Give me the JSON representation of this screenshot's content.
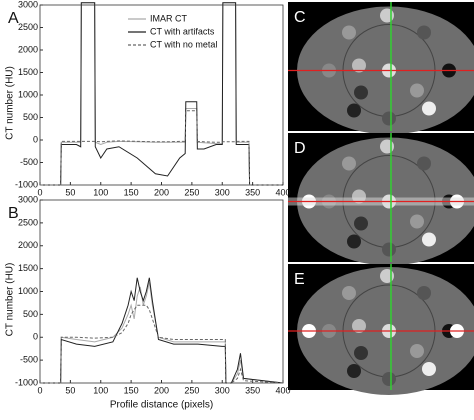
{
  "chart_data": [
    {
      "type": "line",
      "panel_label": "A",
      "y_label": "CT number (HU)",
      "xlim": [
        0,
        400
      ],
      "xticks": [
        0,
        50,
        100,
        150,
        200,
        250,
        300,
        350,
        400
      ],
      "ylim": [
        -1000,
        3000
      ],
      "yticks": [
        -1000,
        -500,
        0,
        500,
        1000,
        1500,
        2000,
        2500,
        3000
      ],
      "legend": "top-center",
      "x": [
        0,
        34,
        35,
        60,
        67,
        68,
        90,
        91,
        100,
        110,
        130,
        160,
        190,
        210,
        230,
        239,
        240,
        258,
        259,
        270,
        290,
        300,
        301,
        322,
        323,
        340,
        344,
        345,
        400
      ],
      "series": [
        {
          "name": "IMAR CT",
          "color": "#aaaaaa",
          "values": [
            -1000,
            -1000,
            -50,
            -50,
            -50,
            3050,
            3050,
            -50,
            -100,
            -50,
            -30,
            -40,
            -50,
            -50,
            -50,
            -50,
            700,
            700,
            -50,
            -60,
            -80,
            -80,
            3050,
            3050,
            -50,
            -50,
            -50,
            -1000,
            -1000
          ]
        },
        {
          "name": "CT with artifacts",
          "color": "#222222",
          "values": [
            -1000,
            -1000,
            -100,
            -100,
            -150,
            3050,
            3050,
            -150,
            -400,
            -200,
            -150,
            -400,
            -750,
            -800,
            -400,
            -300,
            850,
            850,
            -200,
            -200,
            -100,
            -100,
            3050,
            3050,
            -100,
            -100,
            -100,
            -1000,
            -1000
          ]
        },
        {
          "name": "CT with no metal",
          "color": "#666666",
          "values": [
            -1000,
            -1000,
            -30,
            -30,
            -30,
            -30,
            -30,
            -30,
            -40,
            -30,
            -20,
            -30,
            -40,
            -40,
            -30,
            -30,
            650,
            650,
            -30,
            -40,
            -50,
            -50,
            -40,
            -40,
            -30,
            -30,
            -30,
            -1000,
            -1000
          ]
        }
      ]
    },
    {
      "type": "line",
      "panel_label": "B",
      "y_label": "CT number (HU)",
      "x_label": "Profile distance (pixels)",
      "xlim": [
        0,
        400
      ],
      "xticks": [
        0,
        50,
        100,
        150,
        200,
        250,
        300,
        350,
        400
      ],
      "ylim": [
        -1000,
        3000
      ],
      "yticks": [
        -1000,
        -500,
        0,
        500,
        1000,
        1500,
        2000,
        2500,
        3000
      ],
      "x": [
        0,
        34,
        35,
        60,
        90,
        120,
        135,
        145,
        150,
        155,
        160,
        165,
        170,
        175,
        180,
        185,
        195,
        220,
        260,
        300,
        305,
        306,
        315,
        325,
        330,
        335,
        400
      ],
      "series": [
        {
          "color": "#aaaaaa",
          "values": [
            -1000,
            -1000,
            0,
            -50,
            -100,
            0,
            200,
            500,
            700,
            400,
            900,
            1100,
            700,
            900,
            1200,
            700,
            0,
            -100,
            -100,
            -100,
            -100,
            -1000,
            -1000,
            -800,
            -500,
            -900,
            -1000
          ]
        },
        {
          "color": "#222222",
          "values": [
            -1000,
            -1000,
            -50,
            -150,
            -200,
            -100,
            300,
            700,
            1000,
            800,
            1300,
            1000,
            800,
            1000,
            1300,
            800,
            -50,
            -150,
            -150,
            -200,
            -200,
            -1000,
            -1000,
            -700,
            -350,
            -900,
            -1000
          ]
        },
        {
          "color": "#666666",
          "values": [
            -1000,
            -1000,
            0,
            0,
            -20,
            0,
            100,
            300,
            500,
            600,
            700,
            700,
            700,
            700,
            600,
            400,
            0,
            -50,
            -50,
            -50,
            -50,
            -1000,
            -1000,
            -900,
            -700,
            -950,
            -1000
          ]
        }
      ]
    }
  ],
  "image_panels": [
    {
      "label": "C"
    },
    {
      "label": "D"
    },
    {
      "label": "E"
    }
  ]
}
